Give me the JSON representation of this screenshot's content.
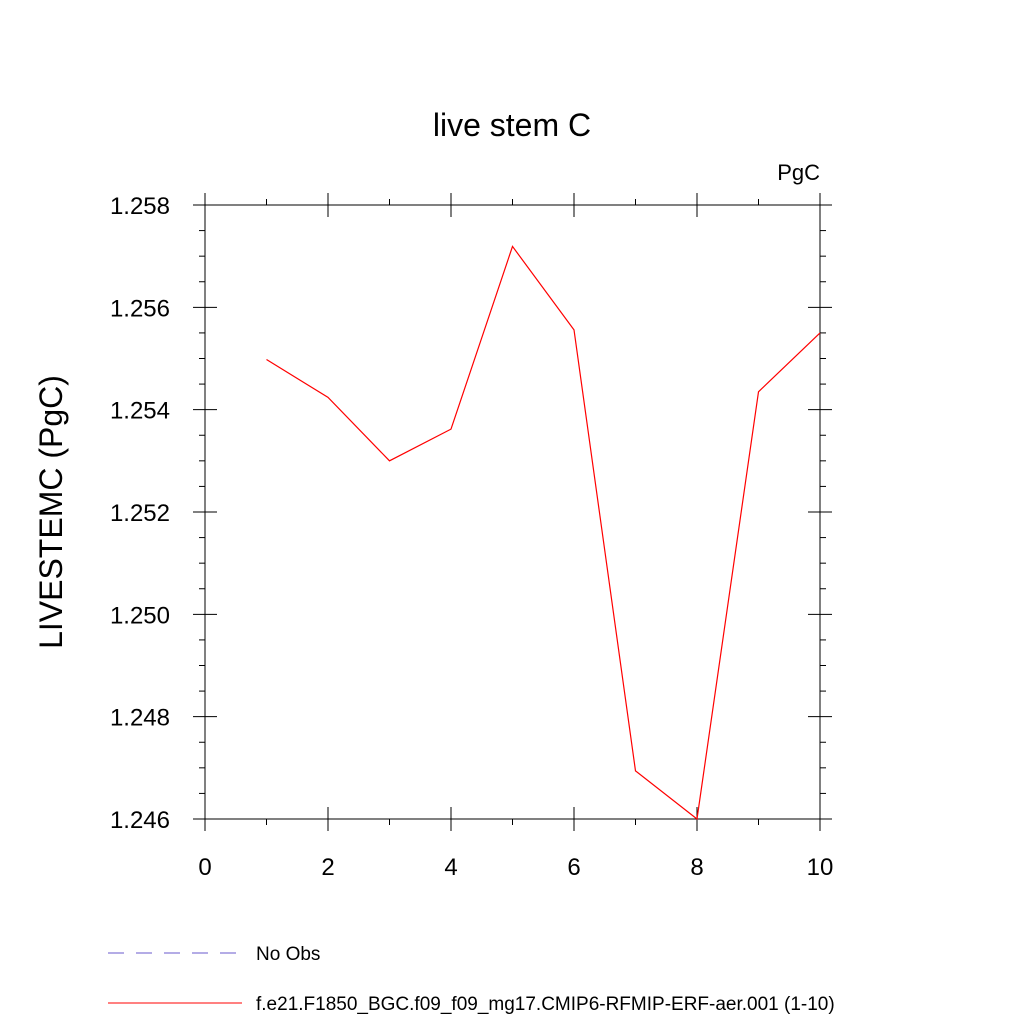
{
  "chart_data": {
    "type": "line",
    "title": "live stem C",
    "units_label": "PgC",
    "ylabel": "LIVESTEMC  (PgC)",
    "xlabel": "",
    "xlim": [
      0,
      10
    ],
    "ylim": [
      1.246,
      1.258
    ],
    "x_ticks": [
      0,
      2,
      4,
      6,
      8,
      10
    ],
    "y_ticks": [
      1.246,
      1.248,
      1.25,
      1.252,
      1.254,
      1.256,
      1.258
    ],
    "y_tick_labels": [
      "1.246",
      "1.248",
      "1.250",
      "1.252",
      "1.254",
      "1.256",
      "1.258"
    ],
    "x_minor_step": 1,
    "y_minor_step": 0.0005,
    "grid": false,
    "legend_position": "bottom",
    "series": [
      {
        "name": "f.e21.F1850_BGC.f09_f09_mg17.CMIP6-RFMIP-ERF-aer.001 (1-10)",
        "color": "#ff0000",
        "dash": "solid",
        "x": [
          1,
          2,
          3,
          4,
          5,
          6,
          7,
          8,
          9,
          10
        ],
        "values": [
          1.25498,
          1.25424,
          1.253,
          1.25362,
          1.25719,
          1.25556,
          1.24694,
          1.246,
          1.25435,
          1.2555
        ]
      }
    ],
    "legend": [
      {
        "label": "No Obs",
        "color": "#6a5acd",
        "dash": "dashed"
      },
      {
        "label": "f.e21.F1850_BGC.f09_f09_mg17.CMIP6-RFMIP-ERF-aer.001 (1-10)",
        "color": "#ff0000",
        "dash": "solid"
      }
    ]
  }
}
